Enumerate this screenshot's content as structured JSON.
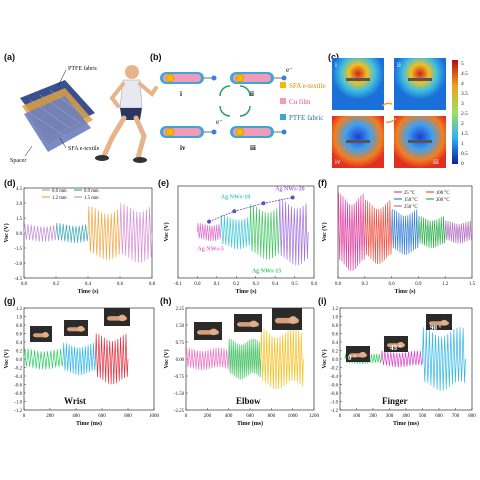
{
  "figure": {
    "panels": [
      {
        "id": "a",
        "label": "(a)"
      },
      {
        "id": "b",
        "label": "(b)"
      },
      {
        "id": "c",
        "label": "(c)"
      },
      {
        "id": "d",
        "label": "(d)"
      },
      {
        "id": "e",
        "label": "(e)"
      },
      {
        "id": "f",
        "label": "(f)"
      },
      {
        "id": "g",
        "label": "(g)"
      },
      {
        "id": "h",
        "label": "(h)"
      },
      {
        "id": "i",
        "label": "(i)"
      }
    ]
  },
  "panel_a": {
    "labels": {
      "ptfe": "PTFE fabric",
      "sfa": "SFA e-textile",
      "spacer": "Spacer"
    },
    "colors": {
      "fabric": "#3a4f8f",
      "shirt": "#e8e8f0",
      "shorts": "#2b3560",
      "skin": "#e6b48a"
    }
  },
  "panel_b": {
    "stages": [
      "i",
      "ii",
      "iii",
      "iv"
    ],
    "charges": {
      "e_minus": "e⁻"
    },
    "legend": [
      {
        "label": "SFA e-textile",
        "color": "#f5b800"
      },
      {
        "label": "Cu film",
        "color": "#f29bb8"
      },
      {
        "label": "PTFE fabric",
        "color": "#3aa7d8"
      }
    ]
  },
  "panel_c": {
    "stages": [
      "i",
      "ii",
      "iii",
      "iv"
    ],
    "colorbar": {
      "ticks": [
        "5",
        "4.5",
        "4",
        "3.5",
        "3",
        "2.5",
        "2",
        "1.5",
        "1",
        "0.5",
        "0"
      ]
    }
  },
  "chart_data": [
    {
      "panel": "d",
      "type": "line",
      "xlabel": "Time (s)",
      "ylabel": "Voc (V)",
      "xlim": [
        0,
        0.8
      ],
      "ylim": [
        -4.5,
        4.5
      ],
      "xticks": [
        "0.0",
        "0.2",
        "0.4",
        "0.6",
        "0.8"
      ],
      "yticks": [
        "4.5",
        "3.0",
        "1.5",
        "0.0",
        "-1.5",
        "-3.0",
        "-4.5"
      ],
      "series": [
        {
          "name": "0.6 mm",
          "color": "#c28fd8",
          "x_range": [
            0,
            0.2
          ],
          "amplitude": 0.9
        },
        {
          "name": "0.9 mm",
          "color": "#3aa7b8",
          "x_range": [
            0.2,
            0.4
          ],
          "amplitude": 1.0
        },
        {
          "name": "1.2 mm",
          "color": "#f5a640",
          "x_range": [
            0.4,
            0.6
          ],
          "amplitude": 2.7
        },
        {
          "name": "1.5 mm",
          "color": "#d88fd8",
          "x_range": [
            0.6,
            0.8
          ],
          "amplitude": 3.0
        }
      ]
    },
    {
      "panel": "e",
      "type": "line",
      "xlabel": "Time (s)",
      "ylabel": "Voc (V)",
      "xlim": [
        -0.1,
        0.6
      ],
      "ylim": [
        -4,
        4
      ],
      "xticks": [
        "-0.1",
        "0.0",
        "0.1",
        "0.2",
        "0.3",
        "0.4",
        "0.5",
        "0.6"
      ],
      "series": [
        {
          "name": "Ag NWs-5",
          "color": "#e070c8",
          "x_range": [
            0.0,
            0.12
          ],
          "amplitude": 0.8
        },
        {
          "name": "Ag NWs-10",
          "color": "#40c8d8",
          "x_range": [
            0.12,
            0.27
          ],
          "amplitude": 1.5
        },
        {
          "name": "Ag NWs-15",
          "color": "#40c860",
          "x_range": [
            0.27,
            0.42
          ],
          "amplitude": 2.4
        },
        {
          "name": "Ag NWs-20",
          "color": "#a070e0",
          "x_range": [
            0.42,
            0.57
          ],
          "amplitude": 2.9
        }
      ],
      "trend_points": [
        [
          0.06,
          0.9
        ],
        [
          0.19,
          1.8
        ],
        [
          0.34,
          2.5
        ],
        [
          0.49,
          3.0
        ]
      ],
      "annotations": [
        "Ag NWs-5",
        "Ag NWs-10",
        "Ag NWs-15",
        "Ag NWs-20"
      ]
    },
    {
      "panel": "f",
      "type": "line",
      "xlabel": "Time (s)",
      "ylabel": "Voc (V)",
      "xlim": [
        0,
        1.5
      ],
      "ylim": [
        -4,
        4
      ],
      "xticks": [
        "0.0",
        "0.3",
        "0.6",
        "0.9",
        "1.2",
        "1.5"
      ],
      "series": [
        {
          "name": "25 °C",
          "color": "#e040a0",
          "x_range": [
            0,
            0.3
          ],
          "amplitude": 3.4
        },
        {
          "name": "100 °C",
          "color": "#f05040",
          "x_range": [
            0.3,
            0.6
          ],
          "amplitude": 2.8
        },
        {
          "name": "150 °C",
          "color": "#3a7fd8",
          "x_range": [
            0.6,
            0.9
          ],
          "amplitude": 2.0
        },
        {
          "name": "200 °C",
          "color": "#30b050",
          "x_range": [
            0.9,
            1.2
          ],
          "amplitude": 1.4
        },
        {
          "name": "250 °C",
          "color": "#b070c0",
          "x_range": [
            1.2,
            1.5
          ],
          "amplitude": 1.0
        }
      ]
    },
    {
      "panel": "g",
      "type": "line",
      "xlabel": "Time (ms)",
      "ylabel": "Voc (V)",
      "xlim": [
        0,
        1000
      ],
      "ylim": [
        -1.2,
        1.2
      ],
      "xticks": [
        "0",
        "200",
        "400",
        "600",
        "800",
        "1000"
      ],
      "yticks": [
        "1.2",
        "1.0",
        "0.8",
        "0.6",
        "0.4",
        "0.2",
        "0.0",
        "-0.2",
        "-0.4",
        "-0.6",
        "-0.8",
        "-1.0",
        "-1.2"
      ],
      "series": [
        {
          "color": "#30d060",
          "x_range": [
            0,
            300
          ],
          "amplitude": 0.25
        },
        {
          "color": "#30b8e8",
          "x_range": [
            300,
            550
          ],
          "amplitude": 0.38
        },
        {
          "color": "#e03040",
          "x_range": [
            550,
            800
          ],
          "amplitude": 0.6
        }
      ],
      "annotation": "Wrist"
    },
    {
      "panel": "h",
      "type": "line",
      "xlabel": "Time (ms)",
      "ylabel": "Voc (V)",
      "xlim": [
        0,
        1200
      ],
      "ylim": [
        -2.25,
        2.25
      ],
      "xticks": [
        "0",
        "200",
        "400",
        "600",
        "800",
        "1000",
        "1200"
      ],
      "yticks": [
        "2.25",
        "1.50",
        "0.75",
        "0.00",
        "-0.75",
        "-1.50",
        "-2.25"
      ],
      "series": [
        {
          "color": "#f070c0",
          "x_range": [
            0,
            400
          ],
          "amplitude": 0.5
        },
        {
          "color": "#40c060",
          "x_range": [
            400,
            700
          ],
          "amplitude": 0.9
        },
        {
          "color": "#f5c020",
          "x_range": [
            700,
            1100
          ],
          "amplitude": 1.35
        }
      ],
      "annotation": "Elbow"
    },
    {
      "panel": "i",
      "type": "line",
      "xlabel": "Time (ms)",
      "ylabel": "Voc (V)",
      "xlim": [
        0,
        800
      ],
      "ylim": [
        -1.2,
        1.2
      ],
      "xticks": [
        "0",
        "100",
        "200",
        "300",
        "400",
        "500",
        "600",
        "700",
        "800"
      ],
      "yticks": [
        "1.2",
        "1.0",
        "0.8",
        "0.6",
        "0.4",
        "0.2",
        "0.0",
        "-0.2",
        "-0.4",
        "-0.6",
        "-0.8",
        "-1.0",
        "-1.2"
      ],
      "series": [
        {
          "color": "#30d060",
          "x_range": [
            30,
            250
          ],
          "amplitude": 0.12
        },
        {
          "color": "#e040c8",
          "x_range": [
            250,
            500
          ],
          "amplitude": 0.2
        },
        {
          "color": "#30b8e8",
          "x_range": [
            500,
            760
          ],
          "amplitude": 0.75
        }
      ],
      "angles": [
        "0 °",
        "45 °",
        "90 °"
      ],
      "annotation": "Finger"
    }
  ]
}
